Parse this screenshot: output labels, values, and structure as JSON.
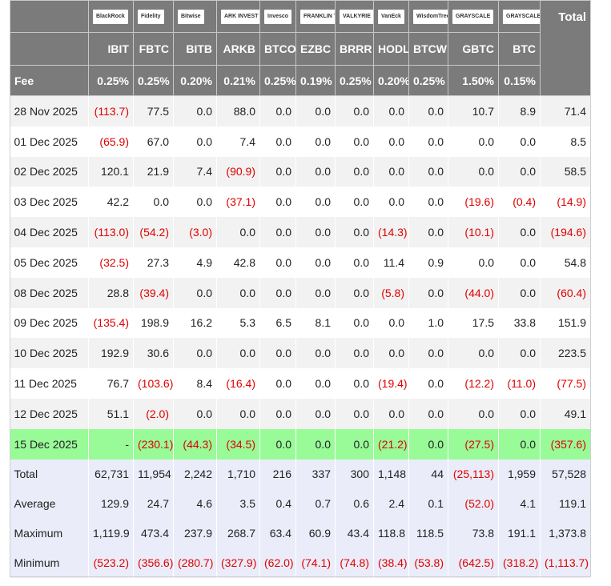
{
  "header": {
    "logos": [
      "BlackRock",
      "Fidelity",
      "Bitwise",
      "ARK INVEST",
      "Invesco",
      "FRANKLIN TEMPLETON",
      "VALKYRIE",
      "VanEck",
      "WisdomTree",
      "GRAYSCALE",
      "GRAYSCALE"
    ],
    "total_label": "Total",
    "tickers": [
      "IBIT",
      "FBTC",
      "BITB",
      "ARKB",
      "BTCO",
      "EZBC",
      "BRRR",
      "HODL",
      "BTCW",
      "GBTC",
      "BTC"
    ],
    "fee_label": "Fee",
    "fees": [
      "0.25%",
      "0.25%",
      "0.20%",
      "0.21%",
      "0.25%",
      "0.19%",
      "0.25%",
      "0.20%",
      "0.25%",
      "1.50%",
      "0.15%"
    ]
  },
  "colors": {
    "header_bg": "#7b7b7b",
    "negative": "#e00000",
    "highlight_row": "#98fb98",
    "summary_bg": "#eaedf9"
  },
  "rows": [
    {
      "date": "28 Nov 2025",
      "values": [
        "(113.7)",
        "77.5",
        "0.0",
        "88.0",
        "0.0",
        "0.0",
        "0.0",
        "0.0",
        "0.0",
        "10.7",
        "8.9",
        "71.4"
      ]
    },
    {
      "date": "01 Dec 2025",
      "values": [
        "(65.9)",
        "67.0",
        "0.0",
        "7.4",
        "0.0",
        "0.0",
        "0.0",
        "0.0",
        "0.0",
        "0.0",
        "0.0",
        "8.5"
      ]
    },
    {
      "date": "02 Dec 2025",
      "values": [
        "120.1",
        "21.9",
        "7.4",
        "(90.9)",
        "0.0",
        "0.0",
        "0.0",
        "0.0",
        "0.0",
        "0.0",
        "0.0",
        "58.5"
      ]
    },
    {
      "date": "03 Dec 2025",
      "values": [
        "42.2",
        "0.0",
        "0.0",
        "(37.1)",
        "0.0",
        "0.0",
        "0.0",
        "0.0",
        "0.0",
        "(19.6)",
        "(0.4)",
        "(14.9)"
      ]
    },
    {
      "date": "04 Dec 2025",
      "values": [
        "(113.0)",
        "(54.2)",
        "(3.0)",
        "0.0",
        "0.0",
        "0.0",
        "0.0",
        "(14.3)",
        "0.0",
        "(10.1)",
        "0.0",
        "(194.6)"
      ]
    },
    {
      "date": "05 Dec 2025",
      "values": [
        "(32.5)",
        "27.3",
        "4.9",
        "42.8",
        "0.0",
        "0.0",
        "0.0",
        "11.4",
        "0.9",
        "0.0",
        "0.0",
        "54.8"
      ]
    },
    {
      "date": "08 Dec 2025",
      "values": [
        "28.8",
        "(39.4)",
        "0.0",
        "0.0",
        "0.0",
        "0.0",
        "0.0",
        "(5.8)",
        "0.0",
        "(44.0)",
        "0.0",
        "(60.4)"
      ]
    },
    {
      "date": "09 Dec 2025",
      "values": [
        "(135.4)",
        "198.9",
        "16.2",
        "5.3",
        "6.5",
        "8.1",
        "0.0",
        "0.0",
        "1.0",
        "17.5",
        "33.8",
        "151.9"
      ]
    },
    {
      "date": "10 Dec 2025",
      "values": [
        "192.9",
        "30.6",
        "0.0",
        "0.0",
        "0.0",
        "0.0",
        "0.0",
        "0.0",
        "0.0",
        "0.0",
        "0.0",
        "223.5"
      ]
    },
    {
      "date": "11 Dec 2025",
      "values": [
        "76.7",
        "(103.6)",
        "8.4",
        "(16.4)",
        "0.0",
        "0.0",
        "0.0",
        "(19.4)",
        "0.0",
        "(12.2)",
        "(11.0)",
        "(77.5)"
      ]
    },
    {
      "date": "12 Dec 2025",
      "values": [
        "51.1",
        "(2.0)",
        "0.0",
        "0.0",
        "0.0",
        "0.0",
        "0.0",
        "0.0",
        "0.0",
        "0.0",
        "0.0",
        "49.1"
      ]
    },
    {
      "date": "15 Dec 2025",
      "highlight": true,
      "values": [
        "-",
        "(230.1)",
        "(44.3)",
        "(34.5)",
        "0.0",
        "0.0",
        "0.0",
        "(21.2)",
        "0.0",
        "(27.5)",
        "0.0",
        "(357.6)"
      ]
    }
  ],
  "summary": [
    {
      "label": "Total",
      "values": [
        "62,731",
        "11,954",
        "2,242",
        "1,710",
        "216",
        "337",
        "300",
        "1,148",
        "44",
        "(25,113)",
        "1,959",
        "57,528"
      ]
    },
    {
      "label": "Average",
      "values": [
        "129.9",
        "24.7",
        "4.6",
        "3.5",
        "0.4",
        "0.7",
        "0.6",
        "2.4",
        "0.1",
        "(52.0)",
        "4.1",
        "119.1"
      ]
    },
    {
      "label": "Maximum",
      "values": [
        "1,119.9",
        "473.4",
        "237.9",
        "268.7",
        "63.4",
        "60.9",
        "43.4",
        "118.8",
        "118.5",
        "73.8",
        "191.1",
        "1,373.8"
      ]
    },
    {
      "label": "Minimum",
      "values": [
        "(523.2)",
        "(356.6)",
        "(280.7)",
        "(327.9)",
        "(62.0)",
        "(74.1)",
        "(74.8)",
        "(38.4)",
        "(53.8)",
        "(642.5)",
        "(318.2)",
        "(1,113.7)"
      ]
    }
  ]
}
